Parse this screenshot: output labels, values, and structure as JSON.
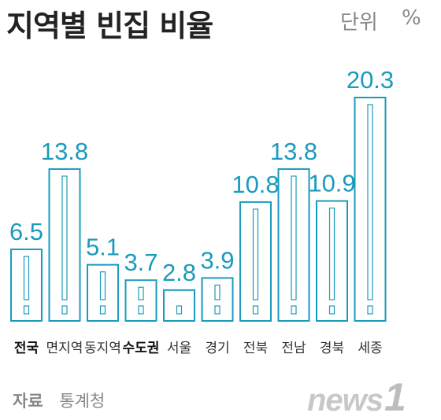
{
  "header": {
    "title": "지역별 빈집 비율",
    "unit_label": "단위",
    "unit_value": "%"
  },
  "chart_data": {
    "type": "bar",
    "title": "지역별 빈집 비율",
    "categories": [
      "전국",
      "면지역",
      "동지역",
      "수도권",
      "서울",
      "경기",
      "전북",
      "전남",
      "경북",
      "세종"
    ],
    "values": [
      6.5,
      13.8,
      5.1,
      3.7,
      2.8,
      3.9,
      10.8,
      13.8,
      10.9,
      20.3
    ],
    "value_labels": [
      "6.5",
      "13.8",
      "5.1",
      "3.7",
      "2.8",
      "3.9",
      "10.8",
      "13.8",
      "10.9",
      "20.3"
    ],
    "emphasized_categories": [
      "전국",
      "수도권"
    ],
    "xlabel": "",
    "ylabel": "",
    "ylim": [
      0,
      20.3
    ],
    "grid": false,
    "bar_color": "#1a9bbd"
  },
  "footer": {
    "source_label": "자료",
    "source_value": "통계청"
  },
  "watermark": {
    "text": "news",
    "mark": "1"
  }
}
